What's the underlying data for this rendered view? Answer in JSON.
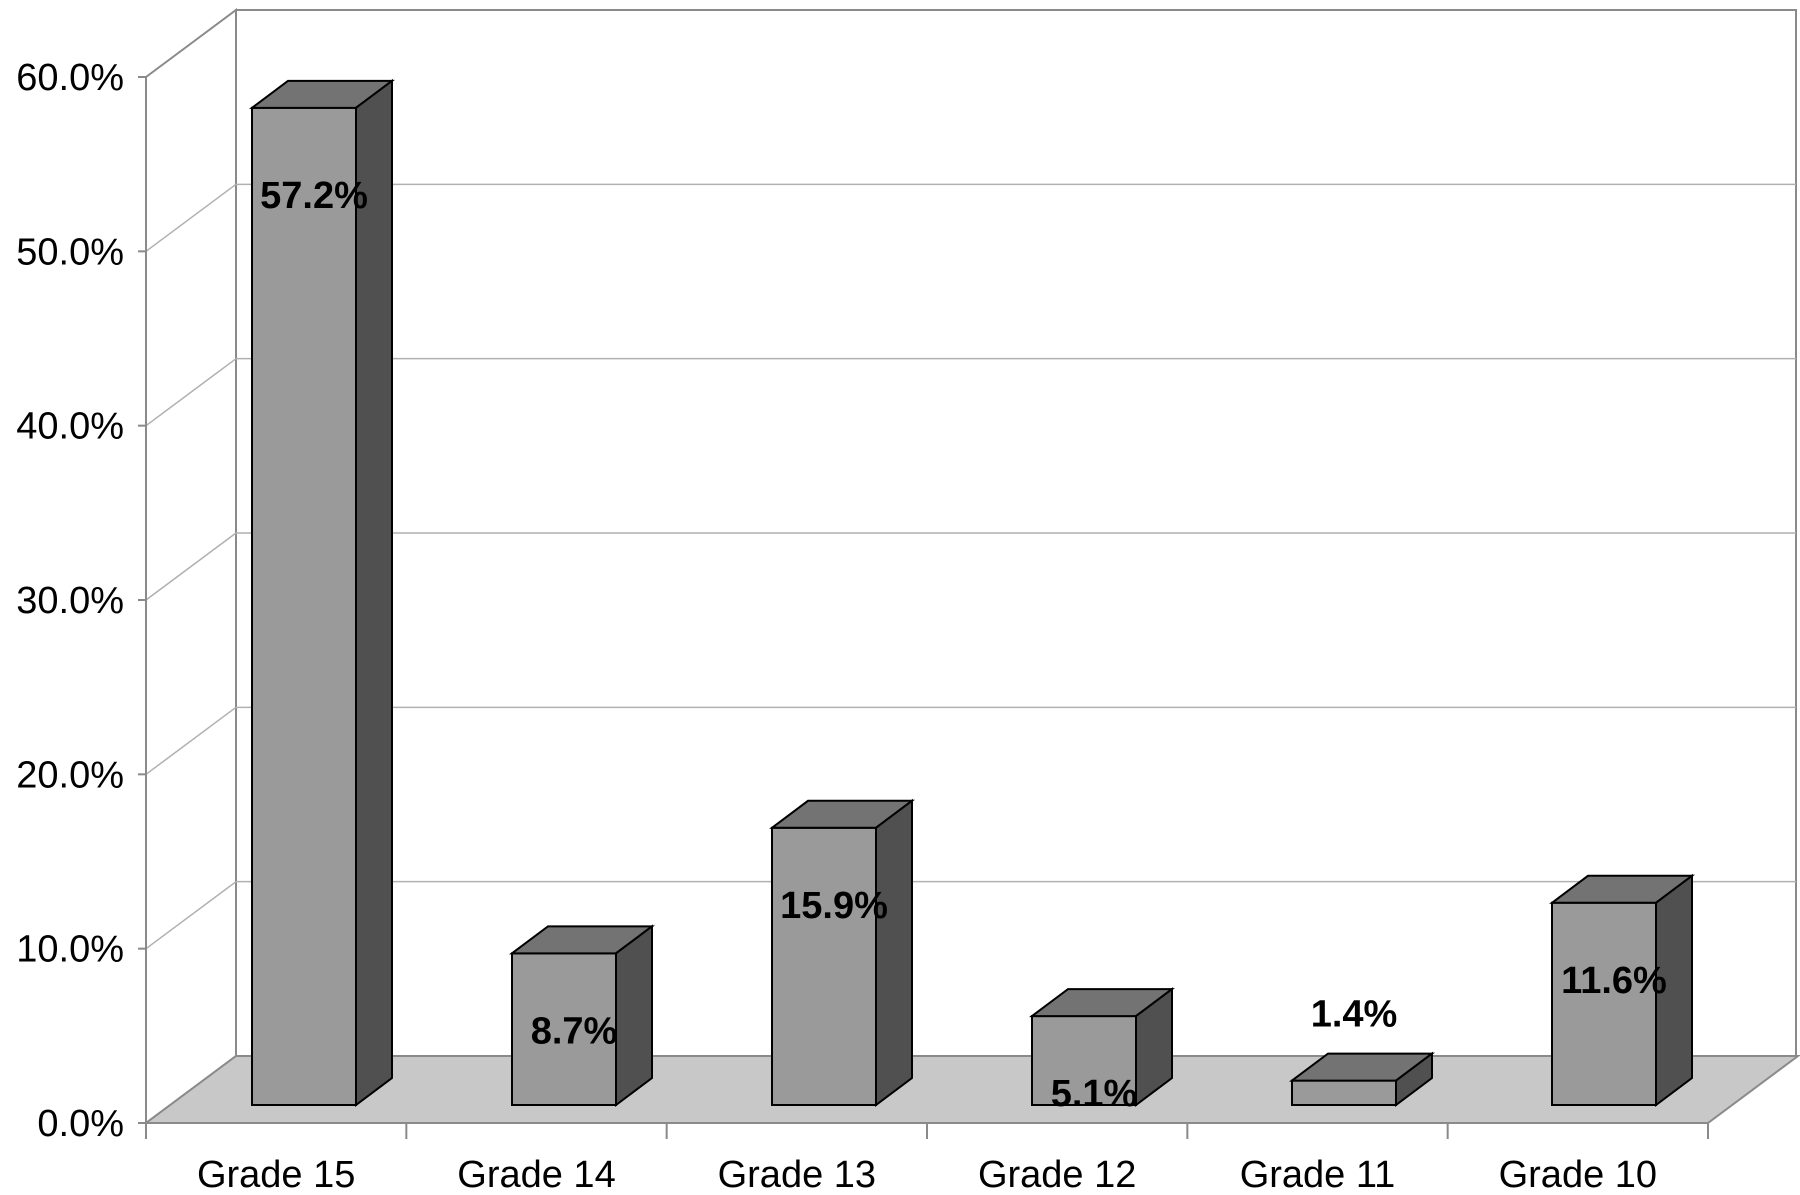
{
  "chart_data": {
    "type": "bar",
    "categories": [
      "Grade 15",
      "Grade 14",
      "Grade 13",
      "Grade 12",
      "Grade 11",
      "Grade 10"
    ],
    "values": [
      57.2,
      8.7,
      15.9,
      5.1,
      1.4,
      11.6
    ],
    "data_labels": [
      "57.2%",
      "8.7%",
      "15.9%",
      "5.1%",
      "1.4%",
      "11.6%"
    ],
    "y_ticks": [
      "0.0%",
      "10.0%",
      "20.0%",
      "30.0%",
      "40.0%",
      "50.0%",
      "60.0%"
    ],
    "ylim": [
      0,
      60
    ],
    "grid": true,
    "legend": "none",
    "colors": {
      "bar_front": "#9a9a9a",
      "bar_top": "#737373",
      "bar_side": "#505050",
      "floor": "#c8c8c8",
      "gridline": "#b0b0b0",
      "edge": "#000000"
    }
  }
}
